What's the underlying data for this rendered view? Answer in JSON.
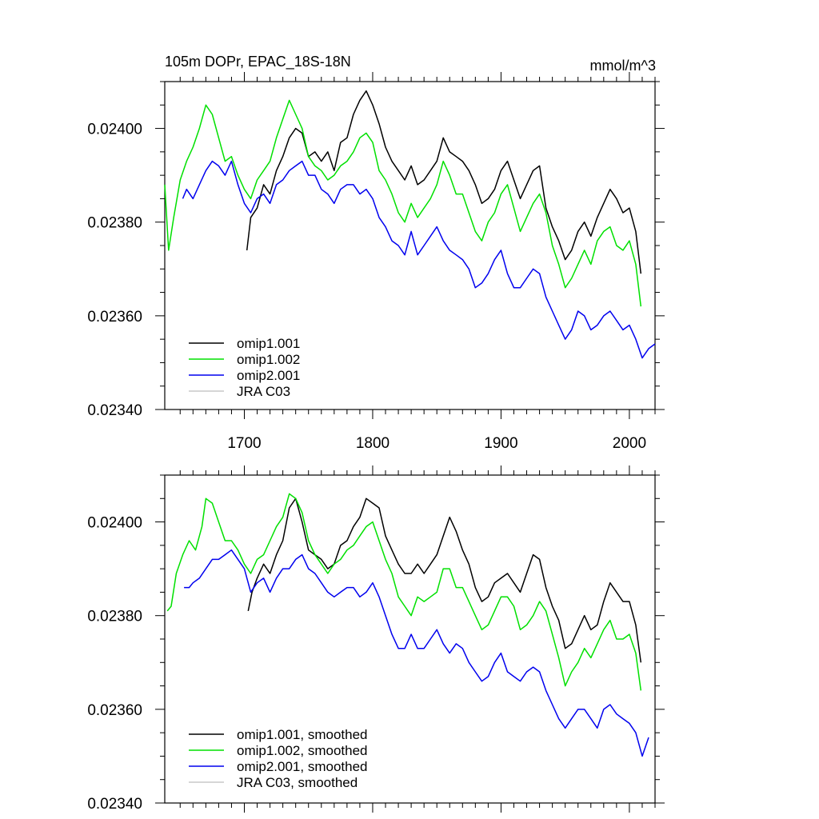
{
  "title": "105m DOPr, EPAC_18S-18N",
  "units": "mmol/m^3",
  "chart_data": [
    {
      "type": "line",
      "panel": "top",
      "title": "105m DOPr, EPAC_18S-18N",
      "units_label": "mmol/m^3",
      "xlim": [
        1638,
        2020
      ],
      "ylim": [
        0.0234,
        0.0241
      ],
      "x_ticks": [
        1700,
        1800,
        1900,
        2000
      ],
      "x_tick_labels": [
        "1700",
        "1800",
        "1900",
        "2000"
      ],
      "y_ticks": [
        0.0234,
        0.0236,
        0.0238,
        0.024
      ],
      "y_tick_labels": [
        "0.02340",
        "0.02360",
        "0.02380",
        "0.02400"
      ],
      "legend_position": "bottom-left",
      "series": [
        {
          "name": "omip1.001",
          "color": "#000000",
          "x": [
            1702,
            1705,
            1710,
            1715,
            1720,
            1725,
            1730,
            1735,
            1740,
            1745,
            1750,
            1755,
            1760,
            1765,
            1770,
            1775,
            1780,
            1785,
            1790,
            1795,
            1800,
            1805,
            1810,
            1815,
            1820,
            1825,
            1830,
            1835,
            1840,
            1845,
            1850,
            1855,
            1860,
            1865,
            1870,
            1875,
            1880,
            1885,
            1890,
            1895,
            1900,
            1905,
            1910,
            1915,
            1920,
            1925,
            1930,
            1935,
            1940,
            1945,
            1950,
            1955,
            1960,
            1965,
            1970,
            1975,
            1980,
            1985,
            1990,
            1995,
            2000,
            2005,
            2009
          ],
          "y": [
            0.02374,
            0.02381,
            0.02383,
            0.02388,
            0.02386,
            0.02391,
            0.02394,
            0.02398,
            0.024,
            0.02399,
            0.02394,
            0.02395,
            0.02393,
            0.02395,
            0.02391,
            0.02397,
            0.02398,
            0.02403,
            0.02406,
            0.02408,
            0.02405,
            0.02401,
            0.02396,
            0.02393,
            0.02391,
            0.02389,
            0.02392,
            0.02388,
            0.02389,
            0.02391,
            0.02393,
            0.02398,
            0.02395,
            0.02394,
            0.02393,
            0.02391,
            0.02388,
            0.02384,
            0.02385,
            0.02387,
            0.02391,
            0.02393,
            0.02389,
            0.02385,
            0.02388,
            0.02391,
            0.02392,
            0.02383,
            0.02379,
            0.02376,
            0.02372,
            0.02374,
            0.02378,
            0.0238,
            0.02377,
            0.02381,
            0.02384,
            0.02387,
            0.02385,
            0.02382,
            0.02383,
            0.02378,
            0.02369
          ]
        },
        {
          "name": "omip1.002",
          "color": "#00e000",
          "x": [
            1638,
            1641,
            1645,
            1650,
            1655,
            1660,
            1665,
            1670,
            1675,
            1680,
            1685,
            1690,
            1695,
            1700,
            1705,
            1710,
            1715,
            1720,
            1725,
            1730,
            1735,
            1740,
            1745,
            1750,
            1755,
            1760,
            1765,
            1770,
            1775,
            1780,
            1785,
            1790,
            1795,
            1800,
            1805,
            1810,
            1815,
            1820,
            1825,
            1830,
            1835,
            1840,
            1845,
            1850,
            1855,
            1860,
            1865,
            1870,
            1875,
            1880,
            1885,
            1890,
            1895,
            1900,
            1905,
            1910,
            1915,
            1920,
            1925,
            1930,
            1935,
            1940,
            1945,
            1950,
            1955,
            1960,
            1965,
            1970,
            1975,
            1980,
            1985,
            1990,
            1995,
            2000,
            2005,
            2009
          ],
          "y": [
            0.02388,
            0.02374,
            0.02381,
            0.02389,
            0.02393,
            0.02396,
            0.024,
            0.02405,
            0.02403,
            0.02398,
            0.02393,
            0.02394,
            0.0239,
            0.02387,
            0.02385,
            0.02389,
            0.02391,
            0.02393,
            0.02398,
            0.02402,
            0.02406,
            0.02403,
            0.024,
            0.02394,
            0.02392,
            0.02391,
            0.02389,
            0.0239,
            0.02392,
            0.02393,
            0.02395,
            0.02398,
            0.02399,
            0.02397,
            0.02391,
            0.02389,
            0.02386,
            0.02382,
            0.0238,
            0.02384,
            0.02381,
            0.02383,
            0.02385,
            0.02388,
            0.02393,
            0.0239,
            0.02386,
            0.02386,
            0.02382,
            0.02378,
            0.02376,
            0.0238,
            0.02382,
            0.02386,
            0.02388,
            0.02383,
            0.02378,
            0.02381,
            0.02384,
            0.02386,
            0.02382,
            0.02375,
            0.02371,
            0.02366,
            0.02368,
            0.02371,
            0.02374,
            0.02371,
            0.02376,
            0.02378,
            0.02379,
            0.02375,
            0.02374,
            0.02376,
            0.02371,
            0.02362
          ]
        },
        {
          "name": "omip2.001",
          "color": "#0000ee",
          "x": [
            1652,
            1655,
            1660,
            1665,
            1670,
            1675,
            1680,
            1685,
            1690,
            1695,
            1700,
            1705,
            1710,
            1715,
            1720,
            1725,
            1730,
            1735,
            1740,
            1745,
            1750,
            1755,
            1760,
            1765,
            1770,
            1775,
            1780,
            1785,
            1790,
            1795,
            1800,
            1805,
            1810,
            1815,
            1820,
            1825,
            1830,
            1835,
            1840,
            1845,
            1850,
            1855,
            1860,
            1865,
            1870,
            1875,
            1880,
            1885,
            1890,
            1895,
            1900,
            1905,
            1910,
            1915,
            1920,
            1925,
            1930,
            1935,
            1940,
            1945,
            1950,
            1955,
            1960,
            1965,
            1970,
            1975,
            1980,
            1985,
            1990,
            1995,
            2000,
            2005,
            2010,
            2015,
            2020
          ],
          "y": [
            0.02385,
            0.02387,
            0.02385,
            0.02388,
            0.02391,
            0.02393,
            0.02392,
            0.0239,
            0.02393,
            0.02388,
            0.02384,
            0.02382,
            0.02385,
            0.02386,
            0.02384,
            0.02388,
            0.02389,
            0.02391,
            0.02392,
            0.02393,
            0.0239,
            0.0239,
            0.02387,
            0.02386,
            0.02384,
            0.02387,
            0.02388,
            0.02388,
            0.02386,
            0.02387,
            0.02385,
            0.02381,
            0.02379,
            0.02376,
            0.02375,
            0.02373,
            0.02378,
            0.02373,
            0.02375,
            0.02377,
            0.02379,
            0.02376,
            0.02374,
            0.02373,
            0.02372,
            0.0237,
            0.02366,
            0.02367,
            0.02369,
            0.02372,
            0.02374,
            0.02369,
            0.02366,
            0.02366,
            0.02368,
            0.0237,
            0.02369,
            0.02364,
            0.02361,
            0.02358,
            0.02355,
            0.02357,
            0.02361,
            0.0236,
            0.02357,
            0.02358,
            0.0236,
            0.02361,
            0.02359,
            0.02357,
            0.02358,
            0.02355,
            0.02351,
            0.02353,
            0.02354
          ]
        },
        {
          "name": "JRA C03",
          "color": "#c8c8c8",
          "x": [],
          "y": []
        }
      ]
    },
    {
      "type": "line",
      "panel": "bottom",
      "xlim": [
        1638,
        2020
      ],
      "ylim": [
        0.0234,
        0.0241
      ],
      "x_ticks": [
        1700,
        1800,
        1900,
        2000
      ],
      "y_ticks": [
        0.0234,
        0.0236,
        0.0238,
        0.024
      ],
      "y_tick_labels": [
        "0.02340",
        "0.02360",
        "0.02380",
        "0.02400"
      ],
      "legend_position": "bottom-left",
      "series": [
        {
          "name": "omip1.001, smoothed",
          "color": "#000000",
          "x": [
            1703,
            1706,
            1710,
            1715,
            1720,
            1725,
            1730,
            1735,
            1740,
            1745,
            1750,
            1755,
            1760,
            1765,
            1770,
            1775,
            1780,
            1785,
            1790,
            1795,
            1800,
            1805,
            1810,
            1815,
            1820,
            1825,
            1830,
            1835,
            1840,
            1845,
            1850,
            1855,
            1860,
            1865,
            1870,
            1875,
            1880,
            1885,
            1890,
            1895,
            1900,
            1905,
            1910,
            1915,
            1920,
            1925,
            1930,
            1935,
            1940,
            1945,
            1950,
            1955,
            1960,
            1965,
            1970,
            1975,
            1980,
            1985,
            1990,
            1995,
            2000,
            2005,
            2009
          ],
          "y": [
            0.02381,
            0.02385,
            0.02388,
            0.02391,
            0.02389,
            0.02393,
            0.02396,
            0.02403,
            0.02405,
            0.024,
            0.02394,
            0.02393,
            0.02392,
            0.0239,
            0.02391,
            0.02395,
            0.02396,
            0.02399,
            0.02401,
            0.02405,
            0.02404,
            0.02403,
            0.02397,
            0.02394,
            0.02391,
            0.02389,
            0.02389,
            0.02391,
            0.02389,
            0.02391,
            0.02393,
            0.02397,
            0.02401,
            0.02398,
            0.02394,
            0.02391,
            0.02386,
            0.02383,
            0.02384,
            0.02387,
            0.02388,
            0.02389,
            0.02387,
            0.02385,
            0.02389,
            0.02393,
            0.02392,
            0.02386,
            0.02382,
            0.02379,
            0.02373,
            0.02374,
            0.02377,
            0.0238,
            0.02377,
            0.02378,
            0.02383,
            0.02387,
            0.02385,
            0.02383,
            0.02383,
            0.02378,
            0.0237
          ]
        },
        {
          "name": "omip1.002, smoothed",
          "color": "#00e000",
          "x": [
            1640,
            1643,
            1647,
            1652,
            1657,
            1662,
            1667,
            1670,
            1675,
            1680,
            1685,
            1690,
            1695,
            1700,
            1705,
            1710,
            1715,
            1720,
            1725,
            1730,
            1735,
            1740,
            1745,
            1750,
            1755,
            1760,
            1765,
            1770,
            1775,
            1780,
            1785,
            1790,
            1795,
            1800,
            1805,
            1810,
            1815,
            1820,
            1825,
            1830,
            1835,
            1840,
            1845,
            1850,
            1855,
            1860,
            1865,
            1870,
            1875,
            1880,
            1885,
            1890,
            1895,
            1900,
            1905,
            1910,
            1915,
            1920,
            1925,
            1930,
            1935,
            1940,
            1945,
            1950,
            1955,
            1960,
            1965,
            1970,
            1975,
            1980,
            1985,
            1990,
            1995,
            2000,
            2005,
            2009
          ],
          "y": [
            0.02381,
            0.02382,
            0.02389,
            0.02393,
            0.02396,
            0.02394,
            0.02399,
            0.02405,
            0.02404,
            0.024,
            0.02396,
            0.02396,
            0.02394,
            0.02391,
            0.02389,
            0.02392,
            0.02393,
            0.02396,
            0.02399,
            0.02401,
            0.02406,
            0.02405,
            0.02402,
            0.02396,
            0.02393,
            0.02391,
            0.02389,
            0.02391,
            0.02392,
            0.02394,
            0.02395,
            0.02397,
            0.02399,
            0.024,
            0.02396,
            0.02392,
            0.02389,
            0.02384,
            0.02382,
            0.0238,
            0.02384,
            0.02383,
            0.02384,
            0.02385,
            0.0239,
            0.0239,
            0.02386,
            0.02386,
            0.02383,
            0.0238,
            0.02377,
            0.02378,
            0.02381,
            0.02384,
            0.02384,
            0.02382,
            0.02377,
            0.02378,
            0.0238,
            0.02383,
            0.02381,
            0.02376,
            0.02371,
            0.02365,
            0.02368,
            0.0237,
            0.02373,
            0.02371,
            0.02374,
            0.02377,
            0.02379,
            0.02375,
            0.02375,
            0.02376,
            0.02372,
            0.02364
          ]
        },
        {
          "name": "omip2.001, smoothed",
          "color": "#0000ee",
          "x": [
            1653,
            1657,
            1660,
            1665,
            1670,
            1675,
            1680,
            1685,
            1690,
            1695,
            1700,
            1705,
            1710,
            1715,
            1720,
            1725,
            1730,
            1735,
            1740,
            1745,
            1750,
            1755,
            1760,
            1765,
            1770,
            1775,
            1780,
            1785,
            1790,
            1795,
            1800,
            1805,
            1810,
            1815,
            1820,
            1825,
            1830,
            1835,
            1840,
            1845,
            1850,
            1855,
            1860,
            1865,
            1870,
            1875,
            1880,
            1885,
            1890,
            1895,
            1900,
            1905,
            1910,
            1915,
            1920,
            1925,
            1930,
            1935,
            1940,
            1945,
            1950,
            1955,
            1960,
            1965,
            1970,
            1975,
            1980,
            1985,
            1990,
            1995,
            2000,
            2005,
            2010,
            2015
          ],
          "y": [
            0.02386,
            0.02386,
            0.02387,
            0.02388,
            0.0239,
            0.02392,
            0.02392,
            0.02393,
            0.02394,
            0.02392,
            0.0239,
            0.02385,
            0.02387,
            0.02388,
            0.02385,
            0.02388,
            0.0239,
            0.0239,
            0.02392,
            0.02393,
            0.0239,
            0.02389,
            0.02387,
            0.02385,
            0.02384,
            0.02385,
            0.02386,
            0.02386,
            0.02384,
            0.02385,
            0.02387,
            0.02384,
            0.0238,
            0.02376,
            0.02373,
            0.02373,
            0.02376,
            0.02373,
            0.02373,
            0.02375,
            0.02377,
            0.02374,
            0.02372,
            0.02374,
            0.02373,
            0.0237,
            0.02368,
            0.02366,
            0.02367,
            0.0237,
            0.02372,
            0.02368,
            0.02367,
            0.02366,
            0.02368,
            0.02369,
            0.02368,
            0.02364,
            0.02361,
            0.02358,
            0.02356,
            0.02358,
            0.0236,
            0.0236,
            0.02358,
            0.02356,
            0.0236,
            0.02361,
            0.02359,
            0.02358,
            0.02357,
            0.02355,
            0.0235,
            0.02354
          ]
        },
        {
          "name": "JRA C03, smoothed",
          "color": "#c8c8c8",
          "x": [],
          "y": []
        }
      ]
    }
  ]
}
